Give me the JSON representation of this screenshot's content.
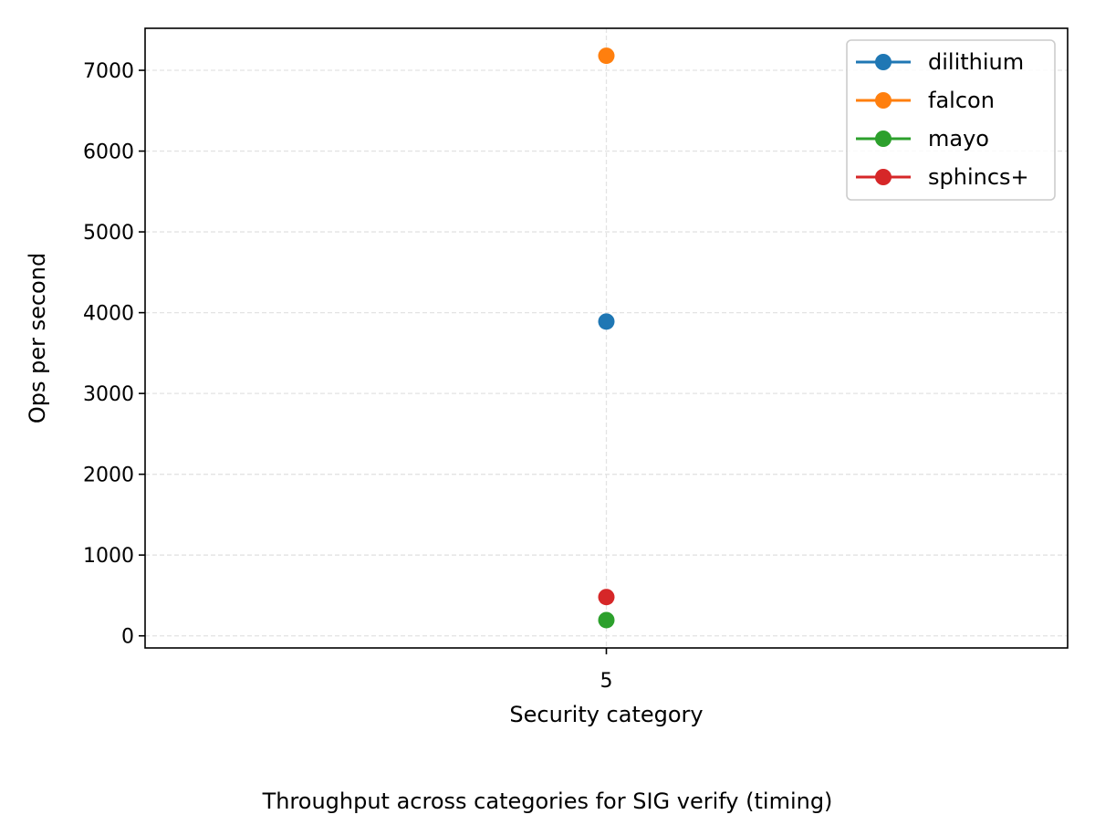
{
  "chart_data": {
    "type": "line",
    "title": "",
    "xlabel": "Security category",
    "ylabel": "Ops per second",
    "categories": [
      "5"
    ],
    "xlim": [
      -2,
      2
    ],
    "ylim": [
      -150,
      7520
    ],
    "yticks": [
      0,
      1000,
      2000,
      3000,
      4000,
      5000,
      6000,
      7000
    ],
    "grid": true,
    "legend_position": "top-right",
    "series": [
      {
        "name": "dilithium",
        "color": "#1f77b4",
        "values": [
          3890
        ]
      },
      {
        "name": "falcon",
        "color": "#ff7f0e",
        "values": [
          7180
        ]
      },
      {
        "name": "mayo",
        "color": "#2ca02c",
        "values": [
          195
        ]
      },
      {
        "name": "sphincs+",
        "color": "#d62728",
        "values": [
          480
        ]
      }
    ]
  },
  "caption": "Throughput across categories for SIG verify (timing)"
}
